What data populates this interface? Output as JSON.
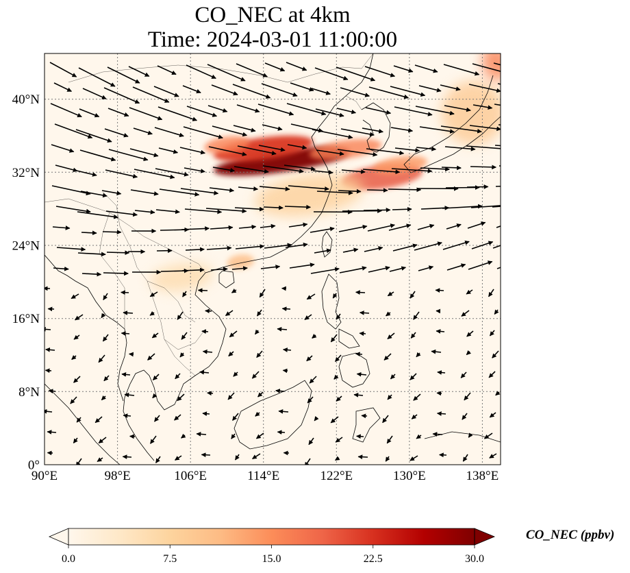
{
  "title": {
    "line1": "CO_NEC at 4km",
    "line2": "Time: 2024-03-01 11:00:00"
  },
  "map": {
    "lon_range": [
      90,
      140
    ],
    "lat_range": [
      0,
      45
    ],
    "lon_ticks": [
      "90°E",
      "98°E",
      "106°E",
      "114°E",
      "122°E",
      "130°E",
      "138°E"
    ],
    "lon_tick_values": [
      90,
      98,
      106,
      114,
      122,
      130,
      138
    ],
    "lat_ticks": [
      "0°",
      "8°N",
      "16°N",
      "24°N",
      "32°N",
      "40°N"
    ],
    "lat_tick_values": [
      0,
      8,
      16,
      24,
      32,
      40
    ],
    "gridlines": true,
    "wind_vectors": true,
    "plumes": [
      {
        "lon": 116,
        "lat": 33.2,
        "rx_deg": 7.5,
        "ry_deg": 1.2,
        "value": 30
      },
      {
        "lon": 114,
        "lat": 34.6,
        "rx_deg": 5.5,
        "ry_deg": 1.2,
        "value": 22
      },
      {
        "lon": 123,
        "lat": 34.5,
        "rx_deg": 4.0,
        "ry_deg": 1.0,
        "value": 16
      },
      {
        "lon": 127,
        "lat": 31.5,
        "rx_deg": 4.5,
        "ry_deg": 1.3,
        "value": 20
      },
      {
        "lon": 129,
        "lat": 32.8,
        "rx_deg": 3.0,
        "ry_deg": 0.9,
        "value": 14
      },
      {
        "lon": 110,
        "lat": 35.0,
        "rx_deg": 2.5,
        "ry_deg": 0.9,
        "value": 16
      },
      {
        "lon": 119,
        "lat": 29.5,
        "rx_deg": 6.0,
        "ry_deg": 2.2,
        "value": 8
      },
      {
        "lon": 111.5,
        "lat": 22.2,
        "rx_deg": 1.5,
        "ry_deg": 0.8,
        "value": 11
      },
      {
        "lon": 105,
        "lat": 20.5,
        "rx_deg": 3.5,
        "ry_deg": 1.5,
        "value": 6
      },
      {
        "lon": 137,
        "lat": 38.5,
        "rx_deg": 3.5,
        "ry_deg": 3.5,
        "value": 9
      },
      {
        "lon": 139.5,
        "lat": 44,
        "rx_deg": 1.5,
        "ry_deg": 2.0,
        "value": 16
      }
    ]
  },
  "colorbar": {
    "colormap": "OrRd",
    "stops": [
      "#fff7ec",
      "#fee8c8",
      "#fdd49e",
      "#fdbb84",
      "#fc8d59",
      "#ef6548",
      "#d7301f",
      "#b30000",
      "#7f0000"
    ],
    "vmin": 0,
    "vmax": 30,
    "tick_values": [
      0,
      7.5,
      15,
      22.5,
      30
    ],
    "ticks": [
      "0.0",
      "7.5",
      "15.0",
      "22.5",
      "30.0"
    ],
    "label": "CO_NEC (ppbv)",
    "extend": "both"
  }
}
